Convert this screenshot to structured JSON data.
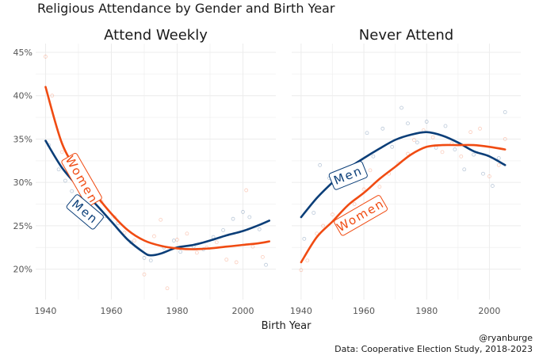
{
  "title": "Religious Attendance by Gender and Birth Year",
  "xlabel": "Birth Year",
  "caption": [
    "@ryanburge",
    "Data: Cooperative Election Study, 2018-2023"
  ],
  "colors": {
    "Men": "#0b3e78",
    "Women": "#f04b12"
  },
  "chart_data": [
    {
      "type": "line",
      "title": "Attend Weekly",
      "xlim": [
        1937,
        2010
      ],
      "ylim": [
        16.5,
        46
      ],
      "xticks": [
        1940,
        1960,
        1980,
        2000
      ],
      "yticks": [
        20,
        25,
        30,
        35,
        40,
        45
      ],
      "ytick_labels": [
        "20%",
        "25%",
        "30%",
        "35%",
        "40%",
        "45%"
      ],
      "grid": true,
      "series": [
        {
          "name": "Men",
          "x": [
            1940,
            1945,
            1950,
            1955,
            1960,
            1965,
            1970,
            1972,
            1975,
            1980,
            1985,
            1990,
            1995,
            2000,
            2005,
            2008
          ],
          "y": [
            34.8,
            31.7,
            29.5,
            27.6,
            25.5,
            23.4,
            21.9,
            21.6,
            21.8,
            22.5,
            22.8,
            23.3,
            23.9,
            24.4,
            25.1,
            25.6
          ]
        },
        {
          "name": "Women",
          "x": [
            1940,
            1945,
            1950,
            1955,
            1960,
            1965,
            1970,
            1975,
            1980,
            1985,
            1990,
            1995,
            2000,
            2005,
            2008
          ],
          "y": [
            41.0,
            34.5,
            31.2,
            28.7,
            26.4,
            24.5,
            23.3,
            22.7,
            22.4,
            22.3,
            22.4,
            22.6,
            22.8,
            23.0,
            23.2
          ]
        }
      ],
      "labels": [
        {
          "series": "Women",
          "text": "Women",
          "x": 1951,
          "y": 30.3,
          "angle": 60
        },
        {
          "series": "Men",
          "text": "Men",
          "x": 1952,
          "y": 26.6,
          "angle": 40
        }
      ],
      "points": {
        "Men": [
          [
            1941,
            34.3
          ],
          [
            1944,
            31.5
          ],
          [
            1946,
            30.2
          ],
          [
            1948,
            29.0
          ],
          [
            1950,
            26.2
          ],
          [
            1953,
            27.0
          ],
          [
            1958,
            26.1
          ],
          [
            1962,
            25.3
          ],
          [
            1966,
            23.1
          ],
          [
            1970,
            21.3
          ],
          [
            1972,
            21.0
          ],
          [
            1976,
            22.5
          ],
          [
            1979,
            23.3
          ],
          [
            1981,
            22.0
          ],
          [
            1985,
            22.6
          ],
          [
            1988,
            22.3
          ],
          [
            1991,
            23.7
          ],
          [
            1994,
            24.5
          ],
          [
            1997,
            25.8
          ],
          [
            2000,
            26.6
          ],
          [
            2002,
            26.0
          ],
          [
            2005,
            24.6
          ],
          [
            2007,
            20.5
          ]
        ],
        "Women": [
          [
            1940,
            44.5
          ],
          [
            1942,
            40.0
          ],
          [
            1945,
            33.5
          ],
          [
            1948,
            31.0
          ],
          [
            1951,
            29.4
          ],
          [
            1954,
            28.5
          ],
          [
            1957,
            27.8
          ],
          [
            1961,
            26.0
          ],
          [
            1964,
            24.2
          ],
          [
            1967,
            23.3
          ],
          [
            1970,
            19.4
          ],
          [
            1973,
            23.8
          ],
          [
            1975,
            25.7
          ],
          [
            1977,
            17.8
          ],
          [
            1980,
            23.4
          ],
          [
            1983,
            24.1
          ],
          [
            1986,
            21.9
          ],
          [
            1989,
            22.5
          ],
          [
            1992,
            23.1
          ],
          [
            1995,
            21.1
          ],
          [
            1998,
            20.8
          ],
          [
            2001,
            29.1
          ],
          [
            2003,
            22.6
          ],
          [
            2006,
            21.4
          ]
        ]
      }
    },
    {
      "type": "line",
      "title": "Never Attend",
      "xlim": [
        1937,
        2010
      ],
      "ylim": [
        16.5,
        46
      ],
      "xticks": [
        1940,
        1960,
        1980,
        2000
      ],
      "grid": true,
      "series": [
        {
          "name": "Men",
          "x": [
            1940,
            1945,
            1950,
            1955,
            1960,
            1965,
            1970,
            1975,
            1980,
            1985,
            1990,
            1995,
            2000,
            2005
          ],
          "y": [
            26.0,
            28.2,
            30.0,
            31.6,
            32.8,
            33.9,
            34.9,
            35.5,
            35.8,
            35.4,
            34.6,
            33.6,
            33.0,
            32.0
          ]
        },
        {
          "name": "Women",
          "x": [
            1940,
            1945,
            1950,
            1955,
            1960,
            1965,
            1970,
            1975,
            1980,
            1985,
            1990,
            1995,
            2000,
            2005
          ],
          "y": [
            20.8,
            23.7,
            25.5,
            27.4,
            28.8,
            30.4,
            31.8,
            33.2,
            34.1,
            34.3,
            34.3,
            34.3,
            34.1,
            33.8
          ]
        }
      ],
      "labels": [
        {
          "series": "Men",
          "text": "Men",
          "x": 1955,
          "y": 30.8,
          "angle": -22
        },
        {
          "series": "Women",
          "text": "Women",
          "x": 1959,
          "y": 26.2,
          "angle": -30
        }
      ],
      "points": {
        "Men": [
          [
            1941,
            23.5
          ],
          [
            1944,
            26.5
          ],
          [
            1946,
            32.0
          ],
          [
            1949,
            30.5
          ],
          [
            1952,
            31.0
          ],
          [
            1957,
            30.5
          ],
          [
            1961,
            35.7
          ],
          [
            1963,
            33.0
          ],
          [
            1966,
            36.2
          ],
          [
            1969,
            34.1
          ],
          [
            1972,
            38.6
          ],
          [
            1974,
            36.8
          ],
          [
            1977,
            34.6
          ],
          [
            1980,
            37.0
          ],
          [
            1983,
            34.0
          ],
          [
            1986,
            36.5
          ],
          [
            1989,
            33.8
          ],
          [
            1992,
            31.5
          ],
          [
            1995,
            33.2
          ],
          [
            1998,
            31.0
          ],
          [
            2001,
            29.6
          ],
          [
            2003,
            32.8
          ],
          [
            2005,
            38.1
          ]
        ],
        "Women": [
          [
            1940,
            19.9
          ],
          [
            1942,
            21.0
          ],
          [
            1945,
            24.1
          ],
          [
            1947,
            25.0
          ],
          [
            1950,
            26.3
          ],
          [
            1953,
            24.8
          ],
          [
            1957,
            27.5
          ],
          [
            1960,
            29.2
          ],
          [
            1962,
            31.4
          ],
          [
            1965,
            29.5
          ],
          [
            1968,
            31.0
          ],
          [
            1971,
            32.2
          ],
          [
            1974,
            33.3
          ],
          [
            1976,
            34.9
          ],
          [
            1979,
            36.0
          ],
          [
            1982,
            35.2
          ],
          [
            1985,
            33.5
          ],
          [
            1988,
            34.5
          ],
          [
            1991,
            33.0
          ],
          [
            1994,
            35.8
          ],
          [
            1997,
            36.2
          ],
          [
            2000,
            30.7
          ],
          [
            2003,
            32.0
          ],
          [
            2005,
            35.0
          ]
        ]
      }
    }
  ]
}
